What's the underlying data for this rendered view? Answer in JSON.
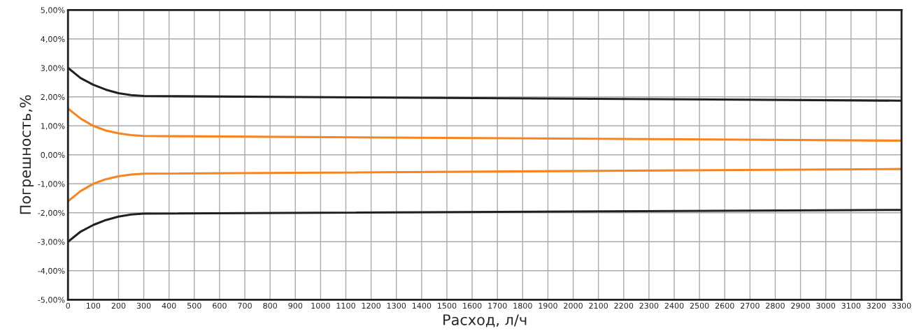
{
  "chart_data": {
    "type": "line",
    "xlabel": "Расход, л/ч",
    "ylabel": "Погрешность,%",
    "x": [
      0,
      50,
      100,
      150,
      200,
      250,
      300,
      3300
    ],
    "series": [
      {
        "color": "#231f20",
        "values": [
          3.0,
          2.65,
          2.42,
          2.25,
          2.13,
          2.06,
          2.03,
          1.87
        ]
      },
      {
        "color": "#f7851f",
        "values": [
          1.6,
          1.25,
          1.0,
          0.84,
          0.74,
          0.68,
          0.65,
          0.49
        ]
      },
      {
        "color": "#f7851f",
        "values": [
          -1.6,
          -1.25,
          -1.0,
          -0.84,
          -0.74,
          -0.68,
          -0.65,
          -0.49
        ]
      },
      {
        "color": "#231f20",
        "values": [
          -3.0,
          -2.65,
          -2.42,
          -2.25,
          -2.13,
          -2.06,
          -2.03,
          -1.9
        ]
      }
    ],
    "xlim": [
      0,
      3300
    ],
    "xticks": [
      0,
      100,
      200,
      300,
      400,
      500,
      600,
      700,
      800,
      900,
      1000,
      1100,
      1200,
      1300,
      1400,
      1500,
      1600,
      1700,
      1800,
      1900,
      2000,
      2100,
      2200,
      2300,
      2400,
      2500,
      2600,
      2700,
      2800,
      2900,
      3000,
      3100,
      3200,
      3300
    ],
    "ylim": [
      -5,
      5
    ],
    "yticks": [
      {
        "value": -5,
        "label": "-5,00%"
      },
      {
        "value": -4,
        "label": "-4,00%"
      },
      {
        "value": -3,
        "label": "-3,00%"
      },
      {
        "value": -2,
        "label": "-2,00%"
      },
      {
        "value": -1,
        "label": "-1,00%"
      },
      {
        "value": 0,
        "label": "0,00%"
      },
      {
        "value": 1,
        "label": "1,00%"
      },
      {
        "value": 2,
        "label": "2,00%"
      },
      {
        "value": 3,
        "label": "3,00%"
      },
      {
        "value": 4,
        "label": "4,00%"
      },
      {
        "value": 5,
        "label": "5,00%"
      }
    ],
    "grid": true,
    "legend": false,
    "marker": "none",
    "line_style": "solid"
  }
}
